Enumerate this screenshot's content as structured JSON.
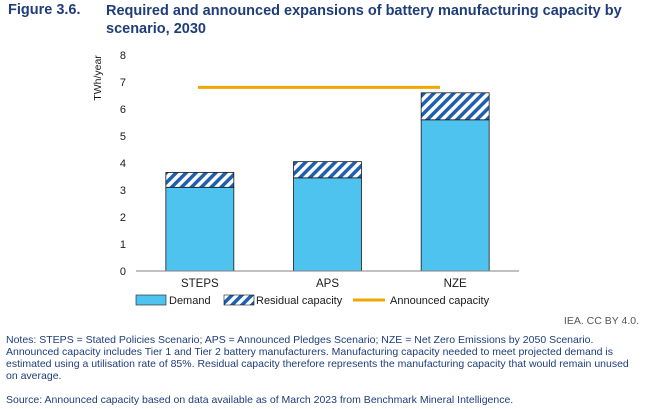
{
  "figure": {
    "number": "Figure 3.6.",
    "title": "Required and announced expansions of battery manufacturing capacity by scenario, 2030"
  },
  "credit": "IEA. CC BY 4.0.",
  "notes": "Notes: STEPS = Stated Policies Scenario; APS = Announced Pledges Scenario; NZE = Net Zero Emissions by 2050 Scenario. Announced capacity includes Tier 1 and Tier 2 battery manufacturers. Manufacturing capacity needed to meet projected demand is estimated using a utilisation rate of 85%. Residual capacity therefore represents the manufacturing capacity that would remain unused on average.",
  "source": "Source: Announced capacity based on data available as of March 2023 from Benchmark Mineral Intelligence.",
  "colors": {
    "demand": "#4fc3f0",
    "residual_stripe": "#1f5fb0",
    "announced": "#f0a800",
    "axis": "#808080",
    "text": "#1a1a1a"
  },
  "chart_data": {
    "type": "bar",
    "stacked": true,
    "ylabel": "TWh/year",
    "ylim": [
      0,
      8
    ],
    "yticks": [
      "0",
      "1",
      "2",
      "3",
      "4",
      "5",
      "6",
      "7",
      "8"
    ],
    "categories": [
      "STEPS",
      "APS",
      "NZE"
    ],
    "series": [
      {
        "name": "Demand",
        "values": [
          3.1,
          3.45,
          5.6
        ],
        "pattern": "solid"
      },
      {
        "name": "Residual capacity",
        "values": [
          0.55,
          0.6,
          1.0
        ],
        "pattern": "hatched"
      }
    ],
    "lines": [
      {
        "name": "Announced capacity",
        "value": 6.8
      }
    ],
    "legend_position": "bottom",
    "grid": false
  }
}
